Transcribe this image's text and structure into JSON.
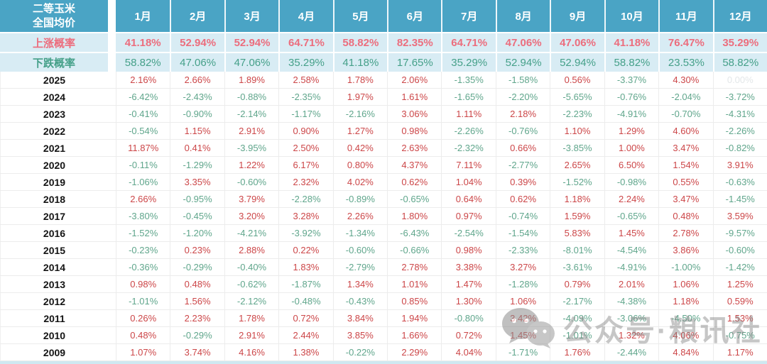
{
  "title": {
    "line1": "二等玉米",
    "line2": "全国均价"
  },
  "months": [
    "1月",
    "2月",
    "3月",
    "4月",
    "5月",
    "6月",
    "7月",
    "8月",
    "9月",
    "10月",
    "11月",
    "12月"
  ],
  "probability_rows": [
    {
      "id": "rise",
      "label": "上涨概率",
      "values": [
        "41.18%",
        "52.94%",
        "52.94%",
        "64.71%",
        "58.82%",
        "82.35%",
        "64.71%",
        "47.06%",
        "47.06%",
        "41.18%",
        "76.47%",
        "35.29%"
      ]
    },
    {
      "id": "fall",
      "label": "下跌概率",
      "values": [
        "58.82%",
        "47.06%",
        "47.06%",
        "35.29%",
        "41.18%",
        "17.65%",
        "35.29%",
        "52.94%",
        "52.94%",
        "58.82%",
        "23.53%",
        "58.82%"
      ]
    }
  ],
  "year_rows": [
    {
      "year": "2025",
      "values": [
        "2.16%",
        "2.66%",
        "1.89%",
        "2.58%",
        "1.78%",
        "2.06%",
        "-1.35%",
        "-1.58%",
        "0.56%",
        "-3.37%",
        "4.30%",
        "0.00%"
      ]
    },
    {
      "year": "2024",
      "values": [
        "-6.42%",
        "-2.43%",
        "-0.88%",
        "-2.35%",
        "1.97%",
        "1.61%",
        "-1.65%",
        "-2.20%",
        "-5.65%",
        "-0.76%",
        "-2.04%",
        "-3.72%"
      ]
    },
    {
      "year": "2023",
      "values": [
        "-0.41%",
        "-0.90%",
        "-2.14%",
        "-1.17%",
        "-2.16%",
        "3.06%",
        "1.11%",
        "2.18%",
        "-2.23%",
        "-4.91%",
        "-0.70%",
        "-4.31%"
      ]
    },
    {
      "year": "2022",
      "values": [
        "-0.54%",
        "1.15%",
        "2.91%",
        "0.90%",
        "1.27%",
        "0.98%",
        "-2.26%",
        "-0.76%",
        "1.10%",
        "1.29%",
        "4.60%",
        "-2.26%"
      ]
    },
    {
      "year": "2021",
      "values": [
        "11.87%",
        "0.41%",
        "-3.95%",
        "2.50%",
        "0.42%",
        "2.63%",
        "-2.32%",
        "0.66%",
        "-3.85%",
        "1.00%",
        "3.47%",
        "-0.82%"
      ]
    },
    {
      "year": "2020",
      "values": [
        "-0.11%",
        "-1.29%",
        "1.22%",
        "6.17%",
        "0.80%",
        "4.37%",
        "7.11%",
        "-2.77%",
        "2.65%",
        "6.50%",
        "1.54%",
        "3.91%"
      ]
    },
    {
      "year": "2019",
      "values": [
        "-1.06%",
        "3.35%",
        "-0.60%",
        "2.32%",
        "4.02%",
        "0.62%",
        "1.04%",
        "0.39%",
        "-1.52%",
        "-0.98%",
        "0.55%",
        "-0.63%"
      ]
    },
    {
      "year": "2018",
      "values": [
        "2.66%",
        "-0.95%",
        "3.79%",
        "-2.28%",
        "-0.89%",
        "-0.65%",
        "0.64%",
        "0.62%",
        "1.18%",
        "2.24%",
        "3.47%",
        "-1.45%"
      ]
    },
    {
      "year": "2017",
      "values": [
        "-3.80%",
        "-0.45%",
        "3.20%",
        "3.28%",
        "2.26%",
        "1.80%",
        "0.97%",
        "-0.74%",
        "1.59%",
        "-0.65%",
        "0.48%",
        "3.59%"
      ]
    },
    {
      "year": "2016",
      "values": [
        "-1.52%",
        "-1.20%",
        "-4.21%",
        "-3.92%",
        "-1.34%",
        "-6.43%",
        "-2.54%",
        "-1.54%",
        "5.83%",
        "1.45%",
        "2.78%",
        "-9.57%"
      ]
    },
    {
      "year": "2015",
      "values": [
        "-0.23%",
        "0.23%",
        "2.88%",
        "0.22%",
        "-0.60%",
        "-0.66%",
        "0.98%",
        "-2.33%",
        "-8.01%",
        "-4.54%",
        "3.86%",
        "-0.60%"
      ]
    },
    {
      "year": "2014",
      "values": [
        "-0.36%",
        "-0.29%",
        "-0.40%",
        "1.83%",
        "-2.79%",
        "2.78%",
        "3.38%",
        "3.27%",
        "-3.61%",
        "-4.91%",
        "-1.00%",
        "-1.42%"
      ]
    },
    {
      "year": "2013",
      "values": [
        "0.98%",
        "0.48%",
        "-0.62%",
        "-1.87%",
        "1.34%",
        "1.01%",
        "1.47%",
        "-1.28%",
        "0.79%",
        "2.01%",
        "1.06%",
        "1.25%"
      ]
    },
    {
      "year": "2012",
      "values": [
        "-1.01%",
        "1.56%",
        "-2.12%",
        "-0.48%",
        "-0.43%",
        "0.85%",
        "1.30%",
        "1.06%",
        "-2.17%",
        "-4.38%",
        "1.18%",
        "0.59%"
      ]
    },
    {
      "year": "2011",
      "values": [
        "0.26%",
        "2.23%",
        "1.78%",
        "0.72%",
        "3.84%",
        "1.94%",
        "-0.80%",
        "3.42%",
        "-4.09%",
        "-3.06%",
        "-4.50%",
        "1.53%"
      ]
    },
    {
      "year": "2010",
      "values": [
        "0.48%",
        "-0.29%",
        "2.91%",
        "2.44%",
        "3.85%",
        "1.66%",
        "0.72%",
        "1.45%",
        "-1.01%",
        "1.32%",
        "4.06%",
        "-0.75%"
      ]
    },
    {
      "year": "2009",
      "values": [
        "1.07%",
        "3.74%",
        "4.16%",
        "1.38%",
        "-0.22%",
        "2.29%",
        "4.04%",
        "-1.71%",
        "1.76%",
        "-2.44%",
        "4.84%",
        "1.17%"
      ]
    }
  ],
  "watermark": {
    "text": "公众号·粮讯社",
    "icon": "wechat-icon"
  },
  "colors": {
    "header_bg": "#4aa4c5",
    "prob_bg": "#d8ecf4",
    "rise": "#ec6d7d",
    "fall": "#45a089",
    "positive": "#cc4648",
    "negative": "#60a68c",
    "zero": "#e3e7e9"
  }
}
